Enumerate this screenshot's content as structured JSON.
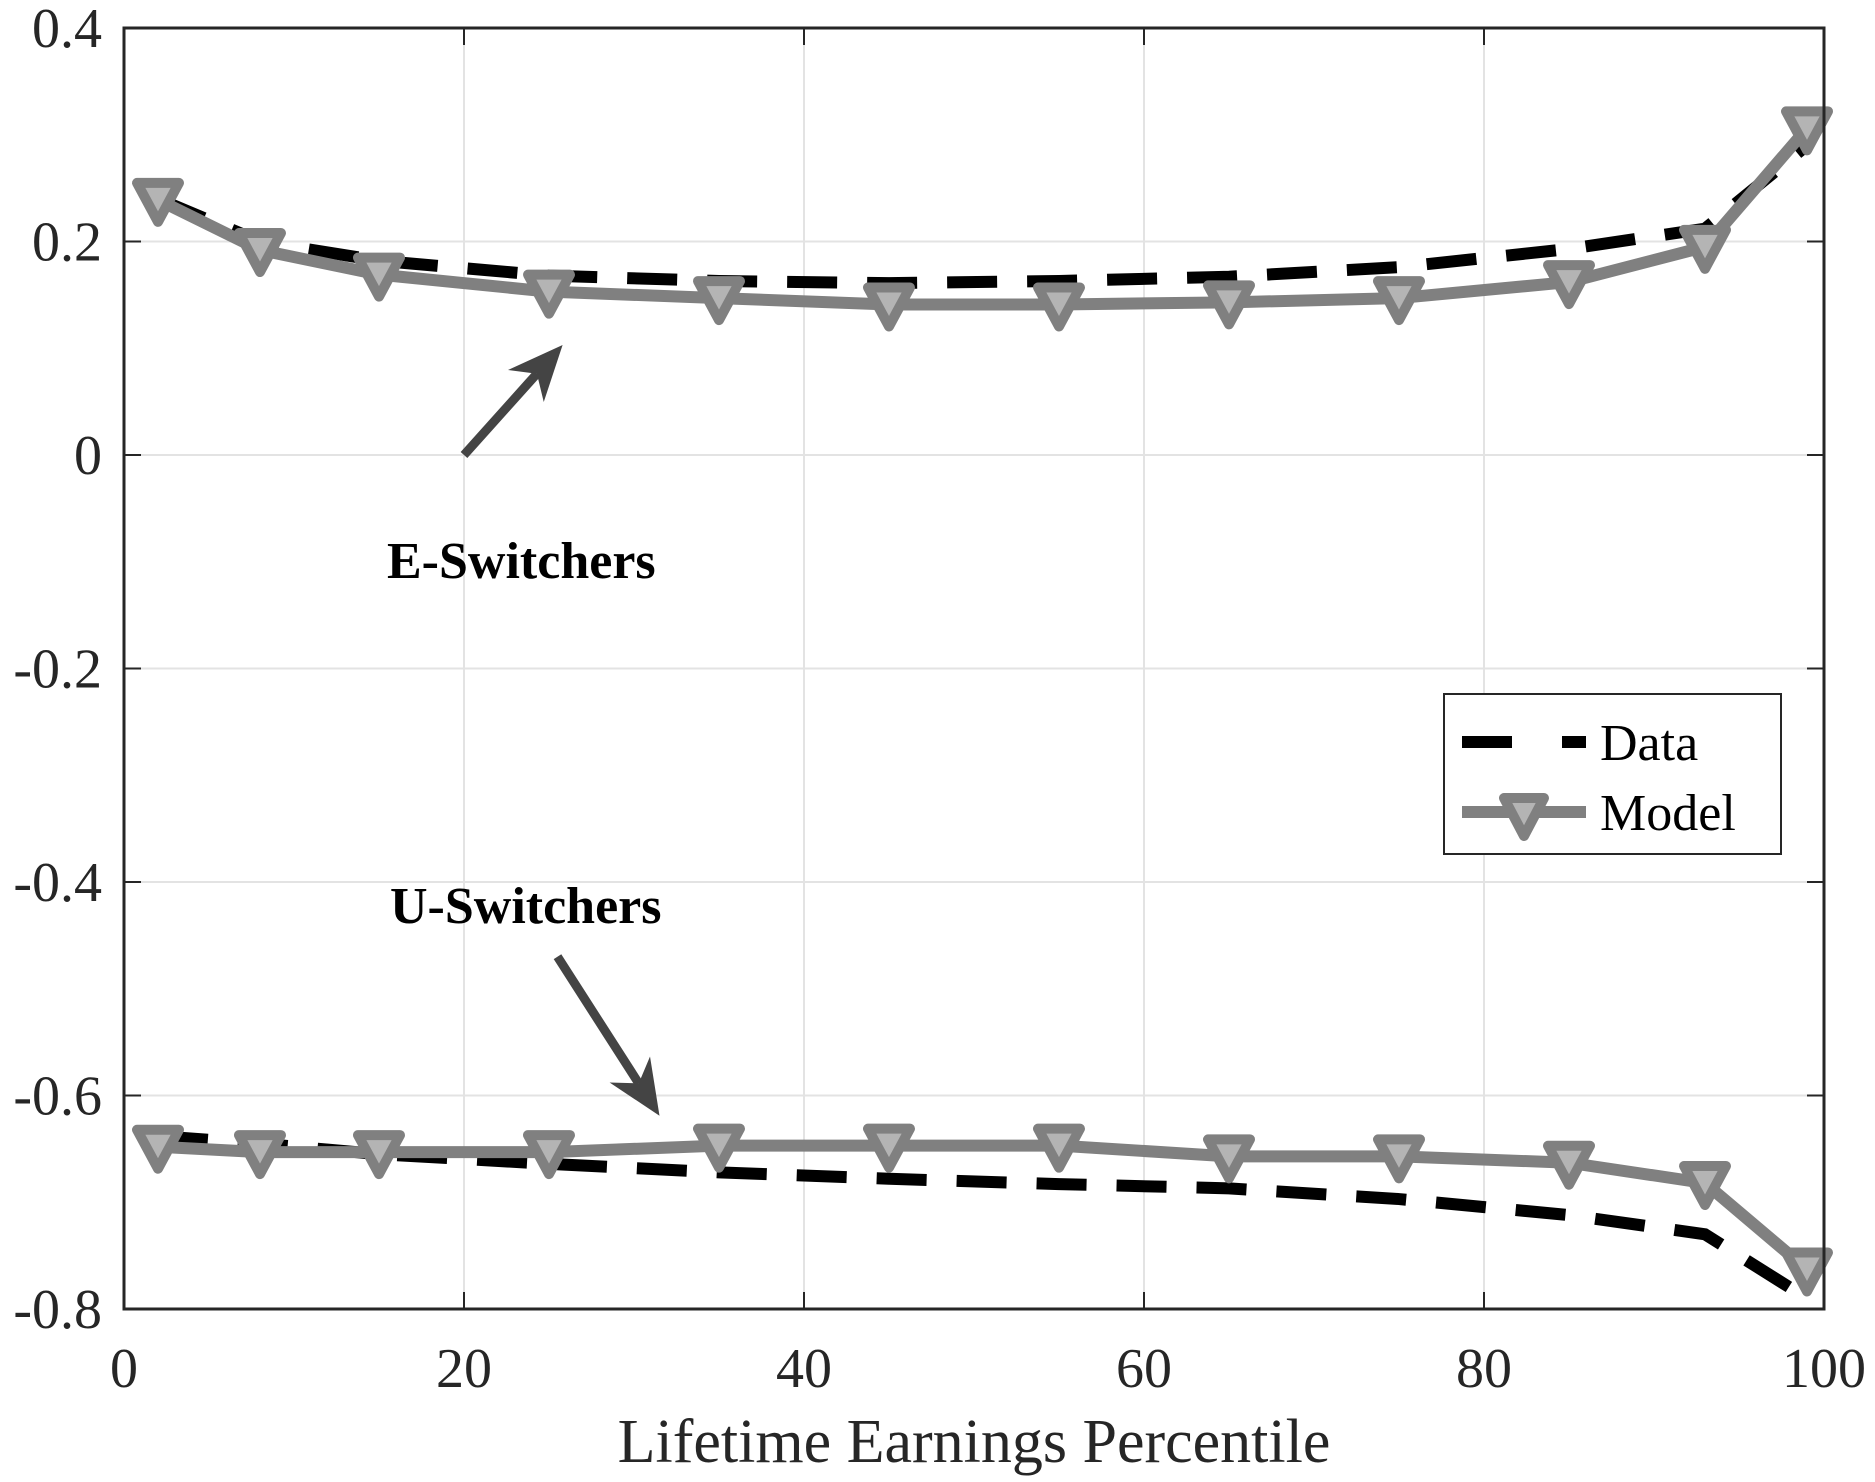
{
  "chart_data": {
    "type": "line",
    "title": "",
    "xlabel": "Lifetime Earnings Percentile",
    "ylabel": "",
    "xlim": [
      0,
      100
    ],
    "ylim": [
      -0.8,
      0.4
    ],
    "xticks": [
      0,
      20,
      40,
      60,
      80,
      100
    ],
    "xtick_labels": [
      "0",
      "20",
      "40",
      "60",
      "80",
      "100"
    ],
    "yticks": [
      0.4,
      0.2,
      0,
      -0.2,
      -0.4,
      -0.6,
      -0.8
    ],
    "ytick_labels": [
      "0.4",
      "0.2",
      "0",
      "-0.2",
      "-0.4",
      "-0.6",
      "-0.8"
    ],
    "grid": true,
    "legend": {
      "position": "right-middle",
      "entries": [
        "Data",
        "Model"
      ]
    },
    "series": [
      {
        "name": "Data",
        "group": "E-Switchers",
        "style": "dashed",
        "color": "#000000",
        "x": [
          2,
          8,
          15,
          25,
          35,
          45,
          55,
          65,
          75,
          85,
          93,
          99
        ],
        "values": [
          0.24,
          0.2,
          0.182,
          0.168,
          0.163,
          0.161,
          0.163,
          0.167,
          0.176,
          0.193,
          0.212,
          0.29
        ]
      },
      {
        "name": "Model",
        "group": "E-Switchers",
        "style": "solid-triangle-down",
        "color": "#808080",
        "x": [
          2,
          8,
          15,
          25,
          35,
          45,
          55,
          65,
          75,
          85,
          93,
          99
        ],
        "values": [
          0.239,
          0.192,
          0.169,
          0.153,
          0.147,
          0.141,
          0.141,
          0.143,
          0.147,
          0.162,
          0.195,
          0.306
        ]
      },
      {
        "name": "Data",
        "group": "U-Switchers",
        "style": "dashed",
        "color": "#000000",
        "x": [
          2,
          8,
          15,
          25,
          35,
          45,
          55,
          65,
          75,
          85,
          93,
          99
        ],
        "values": [
          -0.638,
          -0.645,
          -0.655,
          -0.664,
          -0.672,
          -0.678,
          -0.683,
          -0.687,
          -0.697,
          -0.712,
          -0.73,
          -0.79
        ]
      },
      {
        "name": "Model",
        "group": "U-Switchers",
        "style": "solid-triangle-down",
        "color": "#808080",
        "x": [
          2,
          8,
          15,
          25,
          35,
          45,
          55,
          65,
          75,
          85,
          93,
          99
        ],
        "values": [
          -0.648,
          -0.653,
          -0.653,
          -0.653,
          -0.647,
          -0.647,
          -0.647,
          -0.657,
          -0.657,
          -0.663,
          -0.682,
          -0.763
        ]
      }
    ],
    "annotations": [
      {
        "text": "E-Switchers",
        "arrow_from": [
          20.0,
          0.0
        ],
        "arrow_to": [
          25.8,
          0.103
        ]
      },
      {
        "text": "U-Switchers",
        "arrow_from": [
          25.5,
          -0.47
        ],
        "arrow_to": [
          31.5,
          -0.619
        ]
      }
    ]
  },
  "labels": {
    "xlabel": "Lifetime Earnings Percentile",
    "annotation_e": "E-Switchers",
    "annotation_u": "U-Switchers",
    "legend_data": "Data",
    "legend_model": "Model"
  },
  "colors": {
    "axis": "#262626",
    "grid": "#e3e3e3",
    "data_line": "#000000",
    "model_line": "#808080",
    "model_marker_fill": "#b4b4b4",
    "arrow": "#444444"
  }
}
